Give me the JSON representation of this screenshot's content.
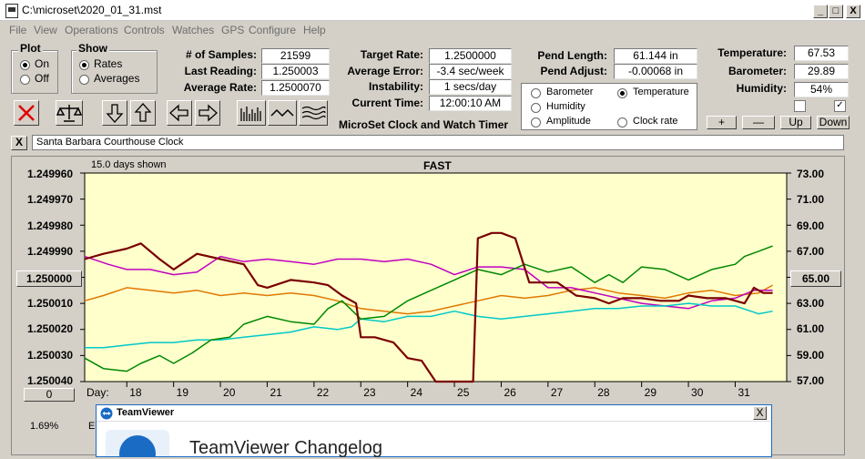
{
  "window": {
    "title": "C:\\microset\\2020_01_31.mst",
    "min": "_",
    "max": "□",
    "close": "X"
  },
  "menu": [
    "File",
    "View",
    "Operations",
    "Controls",
    "Watches",
    "GPS",
    "Configure",
    "Help"
  ],
  "plot_group": {
    "title": "Plot",
    "on": "On",
    "off": "Off",
    "selected": "On"
  },
  "show_group": {
    "title": "Show",
    "rates": "Rates",
    "averages": "Averages",
    "selected": "Rates"
  },
  "stats": {
    "samples_label": "# of Samples:",
    "samples": "21599",
    "last_label": "Last Reading:",
    "last": "1.250003",
    "avg_label": "Average Rate:",
    "avg": "1.2500070",
    "target_label": "Target Rate:",
    "target": "1.2500000",
    "error_label": "Average Error:",
    "error": "-3.4 sec/week",
    "instab_label": "Instability:",
    "instab": "1 secs/day",
    "time_label": "Current Time:",
    "time": "12:00:10 AM",
    "app_name": "MicroSet Clock and Watch Timer",
    "pend_len_label": "Pend Length:",
    "pend_len": "61.144 in",
    "pend_adj_label": "Pend Adjust:",
    "pend_adj": "-0.00068 in",
    "temp_label": "Temperature:",
    "temp": "67.53",
    "baro_label": "Barometer:",
    "baro": "29.89",
    "hum_label": "Humidity:",
    "hum": "54%"
  },
  "overlay_options": {
    "barometer": "Barometer",
    "temperature": "Temperature",
    "humidity": "Humidity",
    "amplitude": "Amplitude",
    "clock_rate": "Clock rate",
    "selected": "Temperature"
  },
  "colors": {
    "barometer": "#e07800",
    "temperature": "#008800",
    "humidity": "#c000c0",
    "amplitude": "#00c8c8",
    "rate": "#7a0000",
    "plot_bg": "#ffffcc"
  },
  "scale_buttons": {
    "plus": "+",
    "minus": "—",
    "up": "Up",
    "down": "Down"
  },
  "toolbar_icons": [
    "reject-icon",
    "balance-scale-icon",
    "arrow-down-icon",
    "arrow-up-icon",
    "arrow-left-icon",
    "arrow-right-icon",
    "bar-chart-icon",
    "wave-icon",
    "multi-wave-icon"
  ],
  "clock_name": "Santa Barbara Courthouse Clock",
  "close_small": "X",
  "plot": {
    "days_shown": "15.0 days shown",
    "status": "FAST",
    "left_ticks": [
      "1.249960",
      "1.249970",
      "1.249980",
      "1.249990",
      "1.250000",
      "1.250010",
      "1.250020",
      "1.250030",
      "1.250040"
    ],
    "left_center_button": "1.250000",
    "left_bottom_button": "0",
    "right_ticks": [
      "73.00",
      "71.00",
      "69.00",
      "67.00",
      "65.00",
      "63.00",
      "61.00",
      "59.00",
      "57.00"
    ],
    "right_center_button": "65.00",
    "day_label": "Day:",
    "days": [
      "18",
      "19",
      "20",
      "21",
      "22",
      "23",
      "24",
      "25",
      "26",
      "27",
      "28",
      "29",
      "30",
      "31"
    ],
    "bottom_left_text": "1.69%",
    "bottom_left_text2": "E"
  },
  "chart_data": {
    "type": "line",
    "x_label": "Day",
    "x_range": [
      17.1,
      32.1
    ],
    "left_axis": {
      "ylim": [
        1.24996,
        1.25004
      ],
      "inverted": true
    },
    "right_axis": {
      "ylim": [
        57,
        73
      ]
    },
    "series": [
      {
        "name": "Clock rate",
        "axis": "left",
        "color": "#7a0000",
        "x": [
          17.1,
          17.5,
          18.0,
          18.3,
          18.7,
          19.0,
          19.5,
          20.0,
          20.5,
          20.8,
          21.0,
          21.5,
          22.0,
          22.3,
          22.6,
          22.9,
          23.0,
          23.3,
          23.7,
          24.0,
          24.3,
          24.6,
          24.9,
          25.2,
          25.4,
          25.5,
          25.8,
          26.0,
          26.3,
          26.6,
          26.8,
          27.2,
          27.6,
          28.0,
          28.3,
          28.6,
          29.0,
          29.4,
          29.8,
          30.0,
          30.4,
          30.8,
          31.2,
          31.4,
          31.6,
          31.8
        ],
        "y": [
          1.249993,
          1.249991,
          1.249989,
          1.249987,
          1.249993,
          1.249997,
          1.249991,
          1.249993,
          1.249995,
          1.250003,
          1.250004,
          1.250001,
          1.250002,
          1.250003,
          1.250007,
          1.25001,
          1.250023,
          1.250023,
          1.250025,
          1.250031,
          1.250032,
          1.250042,
          1.250042,
          1.250042,
          1.250042,
          1.249985,
          1.249983,
          1.249983,
          1.249985,
          1.250002,
          1.250002,
          1.250002,
          1.250007,
          1.250008,
          1.25001,
          1.250008,
          1.250008,
          1.250009,
          1.250009,
          1.250007,
          1.250008,
          1.250008,
          1.25001,
          1.250004,
          1.250006,
          1.250006
        ]
      },
      {
        "name": "Barometer",
        "axis": "right",
        "color": "#e07800",
        "x": [
          17.1,
          17.5,
          18.0,
          18.5,
          19.0,
          19.5,
          20.0,
          20.5,
          21.0,
          21.5,
          22.0,
          22.5,
          23.0,
          23.5,
          24.0,
          24.5,
          25.0,
          25.5,
          26.0,
          26.5,
          27.0,
          27.5,
          28.0,
          28.5,
          29.0,
          29.5,
          30.0,
          30.5,
          31.0,
          31.5,
          31.8
        ],
        "y": [
          63.2,
          63.6,
          64.2,
          64.0,
          63.8,
          64.0,
          63.6,
          63.8,
          63.6,
          63.8,
          63.6,
          63.2,
          62.6,
          62.4,
          62.2,
          62.4,
          62.8,
          63.2,
          63.6,
          63.4,
          63.6,
          64.0,
          64.2,
          63.8,
          63.6,
          63.4,
          63.8,
          64.0,
          63.6,
          63.8,
          64.4
        ]
      },
      {
        "name": "Temperature",
        "axis": "right",
        "color": "#008800",
        "x": [
          17.1,
          17.5,
          18.0,
          18.3,
          18.7,
          19.0,
          19.4,
          19.8,
          20.2,
          20.5,
          21.0,
          21.5,
          22.0,
          22.3,
          22.6,
          23.0,
          23.5,
          24.0,
          24.5,
          25.0,
          25.5,
          26.0,
          26.5,
          27.0,
          27.5,
          28.0,
          28.3,
          28.6,
          29.0,
          29.5,
          30.0,
          30.5,
          31.0,
          31.2,
          31.5,
          31.8
        ],
        "y": [
          58.8,
          58.0,
          57.8,
          58.4,
          59.0,
          58.4,
          59.2,
          60.2,
          60.4,
          61.4,
          62.0,
          61.6,
          61.4,
          62.6,
          63.2,
          61.8,
          62.0,
          63.2,
          64.0,
          64.8,
          65.6,
          65.2,
          66.0,
          65.4,
          65.8,
          64.6,
          65.2,
          64.6,
          65.8,
          65.6,
          64.8,
          65.6,
          66.0,
          66.6,
          67.0,
          67.4
        ]
      },
      {
        "name": "Humidity",
        "axis": "right",
        "color": "#c000c0",
        "x": [
          17.1,
          17.6,
          18.0,
          18.5,
          19.0,
          19.5,
          20.0,
          20.5,
          21.0,
          21.5,
          22.0,
          22.5,
          23.0,
          23.5,
          24.0,
          24.5,
          25.0,
          25.5,
          26.0,
          26.5,
          27.0,
          27.5,
          28.0,
          28.5,
          29.0,
          29.5,
          30.0,
          30.5,
          31.0,
          31.4,
          31.8
        ],
        "y": [
          66.6,
          66.0,
          65.6,
          65.6,
          65.2,
          65.4,
          66.6,
          66.2,
          66.4,
          66.2,
          66.0,
          66.4,
          66.4,
          66.2,
          66.4,
          66.0,
          65.2,
          65.8,
          65.8,
          65.6,
          64.2,
          64.2,
          63.8,
          63.4,
          63.0,
          62.8,
          62.6,
          63.2,
          63.4,
          64.0,
          64.0
        ]
      },
      {
        "name": "Amplitude",
        "axis": "right",
        "color": "#00c8c8",
        "x": [
          17.1,
          17.5,
          18.0,
          18.5,
          19.0,
          19.5,
          20.0,
          20.5,
          21.0,
          21.5,
          22.0,
          22.5,
          22.8,
          23.0,
          23.5,
          24.0,
          24.5,
          25.0,
          25.5,
          26.0,
          26.5,
          27.0,
          27.5,
          28.0,
          28.5,
          29.0,
          29.5,
          30.0,
          30.5,
          31.0,
          31.5,
          31.8
        ],
        "y": [
          59.6,
          59.6,
          59.8,
          60.0,
          60.0,
          60.2,
          60.2,
          60.4,
          60.6,
          60.8,
          61.2,
          61.0,
          61.2,
          61.8,
          61.6,
          62.0,
          62.0,
          62.4,
          62.0,
          61.8,
          62.0,
          62.2,
          62.4,
          62.6,
          62.6,
          62.8,
          62.8,
          63.0,
          62.8,
          62.8,
          62.2,
          62.4
        ]
      }
    ]
  },
  "teamviewer": {
    "title": "TeamViewer",
    "heading": "TeamViewer Changelog",
    "close": "X"
  }
}
